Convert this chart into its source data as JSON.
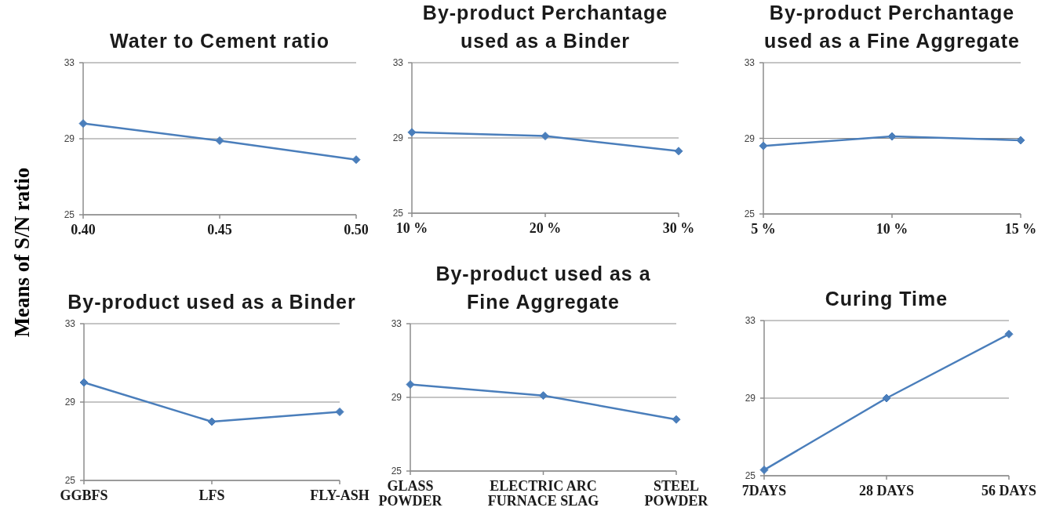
{
  "chart_data": [
    {
      "type": "line",
      "title": "Water to Cement ratio",
      "ylabel": "Means of S/N ratio",
      "categories": [
        "0.40",
        "0.45",
        "0.50"
      ],
      "values": [
        29.8,
        28.9,
        27.9
      ],
      "color": "#4a7ebb",
      "marker": "diamond",
      "ylim": [
        25,
        33
      ],
      "yticks": [
        25,
        29,
        33
      ],
      "grid": "y"
    },
    {
      "type": "line",
      "title": "By-product Perchantage used as a Binder",
      "categories": [
        "10 %",
        "20 %",
        "30 %"
      ],
      "values": [
        29.3,
        29.1,
        28.3
      ],
      "color": "#4a7ebb",
      "marker": "diamond",
      "ylim": [
        25,
        33
      ],
      "yticks": [
        25,
        29,
        33
      ],
      "grid": "y"
    },
    {
      "type": "line",
      "title": "By-product Perchantage used as a Fine Aggregate",
      "categories": [
        "5 %",
        "10 %",
        "15 %"
      ],
      "values": [
        28.6,
        29.1,
        28.9
      ],
      "color": "#4a7ebb",
      "marker": "diamond",
      "ylim": [
        25,
        33
      ],
      "yticks": [
        25,
        29,
        33
      ],
      "grid": "y"
    },
    {
      "type": "line",
      "title": "By-product used as a Binder",
      "categories": [
        "GGBFS",
        "LFS",
        "FLY-ASH"
      ],
      "values": [
        30.0,
        28.0,
        28.5
      ],
      "color": "#4a7ebb",
      "marker": "diamond",
      "ylim": [
        25,
        33
      ],
      "yticks": [
        25,
        29,
        33
      ],
      "grid": "y"
    },
    {
      "type": "line",
      "title": "By-product used as a Fine Aggregate",
      "categories": [
        "GLASS POWDER",
        "ELECTRIC ARC FURNACE SLAG",
        "STEEL POWDER"
      ],
      "values": [
        29.7,
        29.1,
        27.8
      ],
      "color": "#4a7ebb",
      "marker": "diamond",
      "ylim": [
        25,
        33
      ],
      "yticks": [
        25,
        29,
        33
      ],
      "grid": "y"
    },
    {
      "type": "line",
      "title": "Curing Time",
      "categories": [
        "7DAYS",
        "28 DAYS",
        "56 DAYS"
      ],
      "values": [
        25.3,
        29.0,
        32.3
      ],
      "color": "#4a7ebb",
      "marker": "diamond",
      "ylim": [
        25,
        33
      ],
      "yticks": [
        25,
        29,
        33
      ],
      "grid": "y"
    }
  ]
}
